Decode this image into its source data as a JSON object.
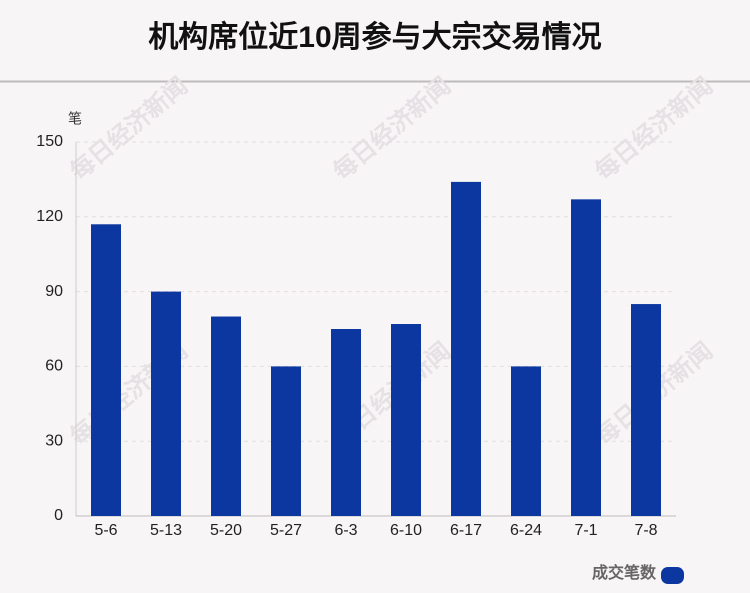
{
  "chart_data": {
    "type": "bar",
    "title": "机构席位近10周参与大宗交易情况",
    "y_label": "笔",
    "watermark": "每日经济新闻",
    "categories": [
      "5-6",
      "5-13",
      "5-20",
      "5-27",
      "6-3",
      "6-10",
      "6-17",
      "6-24",
      "7-1",
      "7-8"
    ],
    "series": [
      {
        "name": "成交笔数",
        "color": "#0c37a0",
        "values": [
          117,
          90,
          80,
          60,
          75,
          77,
          134,
          60,
          127,
          85
        ]
      }
    ],
    "ylim": [
      0,
      150
    ],
    "yticks": [
      0,
      30,
      60,
      90,
      120,
      150
    ],
    "grid": true,
    "legend": "bottom-right"
  }
}
